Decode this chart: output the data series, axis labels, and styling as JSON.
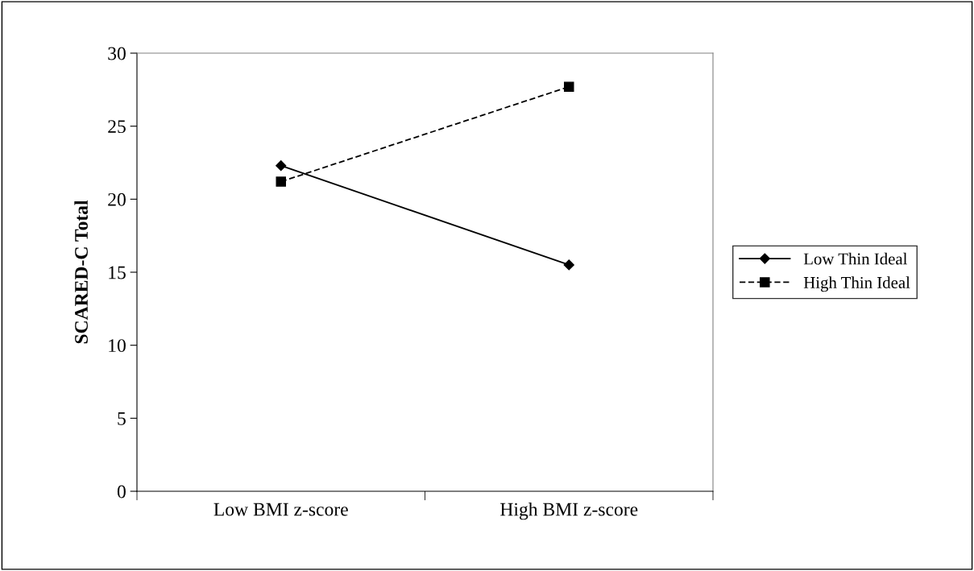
{
  "chart_data": {
    "type": "line",
    "ylabel": "SCARED-C Total",
    "categories": [
      "Low BMI z-score",
      "High BMI z-score"
    ],
    "series": [
      {
        "name": "Low Thin Ideal",
        "color": "#000000",
        "values": [
          22.3,
          15.5
        ],
        "marker": "diamond",
        "line_style": "solid"
      },
      {
        "name": "High Thin Ideal",
        "color": "#000000",
        "values": [
          21.2,
          27.7
        ],
        "marker": "square",
        "line_style": "dashed"
      }
    ],
    "ylim": [
      0,
      30
    ],
    "yticks": [
      0,
      5,
      10,
      15,
      20,
      25,
      30
    ],
    "grid": false,
    "legend": "right"
  }
}
